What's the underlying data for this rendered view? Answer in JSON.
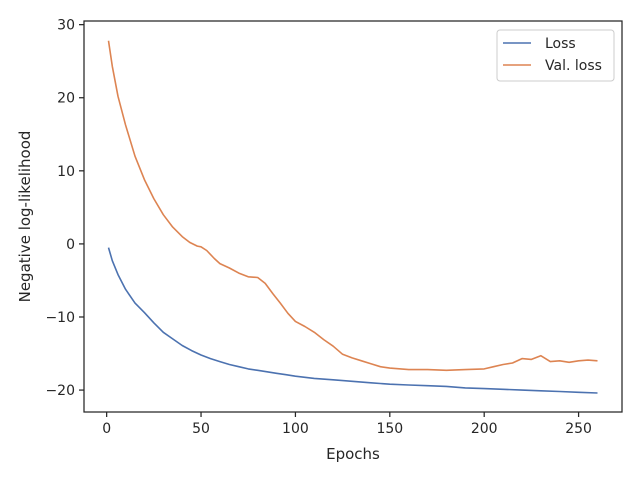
{
  "chart_data": {
    "type": "line",
    "xlabel": "Epochs",
    "ylabel": "Negative log-likelihood",
    "xlim": [
      -12,
      273
    ],
    "ylim": [
      -23,
      30.5
    ],
    "xticks": [
      0,
      50,
      100,
      150,
      200,
      250
    ],
    "yticks": [
      30,
      20,
      10,
      0,
      -10,
      -20
    ],
    "ytick_labels": [
      "30",
      "20",
      "10",
      "0",
      "−10",
      "−20"
    ],
    "legend_position": "top-right",
    "grid": false,
    "series": [
      {
        "name": "Loss",
        "color": "#4c72b0",
        "points": [
          [
            1,
            -0.5
          ],
          [
            3,
            -2.3
          ],
          [
            6,
            -4.2
          ],
          [
            10,
            -6.2
          ],
          [
            15,
            -8.1
          ],
          [
            20,
            -9.4
          ],
          [
            25,
            -10.8
          ],
          [
            30,
            -12.1
          ],
          [
            35,
            -13.0
          ],
          [
            40,
            -13.9
          ],
          [
            45,
            -14.6
          ],
          [
            50,
            -15.2
          ],
          [
            55,
            -15.7
          ],
          [
            60,
            -16.1
          ],
          [
            65,
            -16.5
          ],
          [
            70,
            -16.8
          ],
          [
            75,
            -17.1
          ],
          [
            80,
            -17.3
          ],
          [
            85,
            -17.5
          ],
          [
            90,
            -17.7
          ],
          [
            95,
            -17.9
          ],
          [
            100,
            -18.1
          ],
          [
            110,
            -18.4
          ],
          [
            120,
            -18.6
          ],
          [
            130,
            -18.8
          ],
          [
            140,
            -19.0
          ],
          [
            150,
            -19.2
          ],
          [
            160,
            -19.3
          ],
          [
            170,
            -19.4
          ],
          [
            180,
            -19.5
          ],
          [
            190,
            -19.7
          ],
          [
            200,
            -19.8
          ],
          [
            210,
            -19.9
          ],
          [
            220,
            -20.0
          ],
          [
            230,
            -20.1
          ],
          [
            240,
            -20.2
          ],
          [
            250,
            -20.3
          ],
          [
            260,
            -20.4
          ]
        ]
      },
      {
        "name": "Val. loss",
        "color": "#dd8452",
        "points": [
          [
            1,
            27.8
          ],
          [
            3,
            24.3
          ],
          [
            6,
            20.2
          ],
          [
            10,
            16.3
          ],
          [
            15,
            12.0
          ],
          [
            20,
            8.8
          ],
          [
            25,
            6.2
          ],
          [
            30,
            4.0
          ],
          [
            35,
            2.3
          ],
          [
            40,
            1.0
          ],
          [
            44,
            0.2
          ],
          [
            48,
            -0.3
          ],
          [
            50,
            -0.4
          ],
          [
            53,
            -0.9
          ],
          [
            57,
            -2.0
          ],
          [
            60,
            -2.7
          ],
          [
            65,
            -3.3
          ],
          [
            70,
            -4.0
          ],
          [
            75,
            -4.5
          ],
          [
            80,
            -4.6
          ],
          [
            84,
            -5.4
          ],
          [
            88,
            -6.8
          ],
          [
            92,
            -8.1
          ],
          [
            96,
            -9.5
          ],
          [
            100,
            -10.6
          ],
          [
            105,
            -11.3
          ],
          [
            110,
            -12.1
          ],
          [
            115,
            -13.1
          ],
          [
            120,
            -14.0
          ],
          [
            125,
            -15.1
          ],
          [
            130,
            -15.6
          ],
          [
            135,
            -16.0
          ],
          [
            140,
            -16.4
          ],
          [
            145,
            -16.8
          ],
          [
            150,
            -17.0
          ],
          [
            160,
            -17.2
          ],
          [
            170,
            -17.2
          ],
          [
            180,
            -17.3
          ],
          [
            190,
            -17.2
          ],
          [
            200,
            -17.1
          ],
          [
            205,
            -16.8
          ],
          [
            210,
            -16.5
          ],
          [
            215,
            -16.3
          ],
          [
            220,
            -15.7
          ],
          [
            225,
            -15.8
          ],
          [
            230,
            -15.3
          ],
          [
            235,
            -16.1
          ],
          [
            240,
            -16.0
          ],
          [
            245,
            -16.2
          ],
          [
            250,
            -16.0
          ],
          [
            255,
            -15.9
          ],
          [
            260,
            -16.0
          ]
        ]
      }
    ]
  }
}
